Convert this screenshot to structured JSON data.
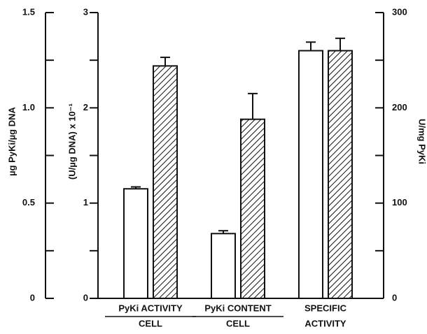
{
  "chart_data": {
    "type": "bar",
    "axes": [
      {
        "label": "µg PyKi/µg DNA",
        "lim": [
          0,
          1.5
        ],
        "ticks": [
          0,
          0.5,
          {
            "value": 1,
            "label": "1.0"
          },
          1.5
        ]
      },
      {
        "label": "(U/µg DNA) x 10⁻¹",
        "lim": [
          0,
          3
        ],
        "ticks": [
          0,
          1,
          2,
          3
        ]
      },
      {
        "label": "U/mg PyKi",
        "lim": [
          0,
          300
        ],
        "ticks": [
          0,
          100,
          200,
          300
        ]
      }
    ],
    "categories": [
      {
        "lines": [
          "PyKi ACTIVITY",
          "CELL"
        ],
        "axis": 1
      },
      {
        "lines": [
          "PyKi CONTENT",
          "CELL"
        ],
        "axis": 0
      },
      {
        "lines": [
          "SPECIFIC",
          "ACTIVITY"
        ],
        "axis": 2
      }
    ],
    "series": [
      {
        "color": "#ffffff",
        "hatch": false,
        "values": [
          1.15,
          0.34,
          260
        ],
        "errors": [
          0.02,
          0.015,
          9
        ]
      },
      {
        "color": "#ffffff",
        "hatch": true,
        "values": [
          2.44,
          0.94,
          260
        ],
        "errors": [
          0.09,
          0.135,
          13
        ]
      }
    ]
  }
}
